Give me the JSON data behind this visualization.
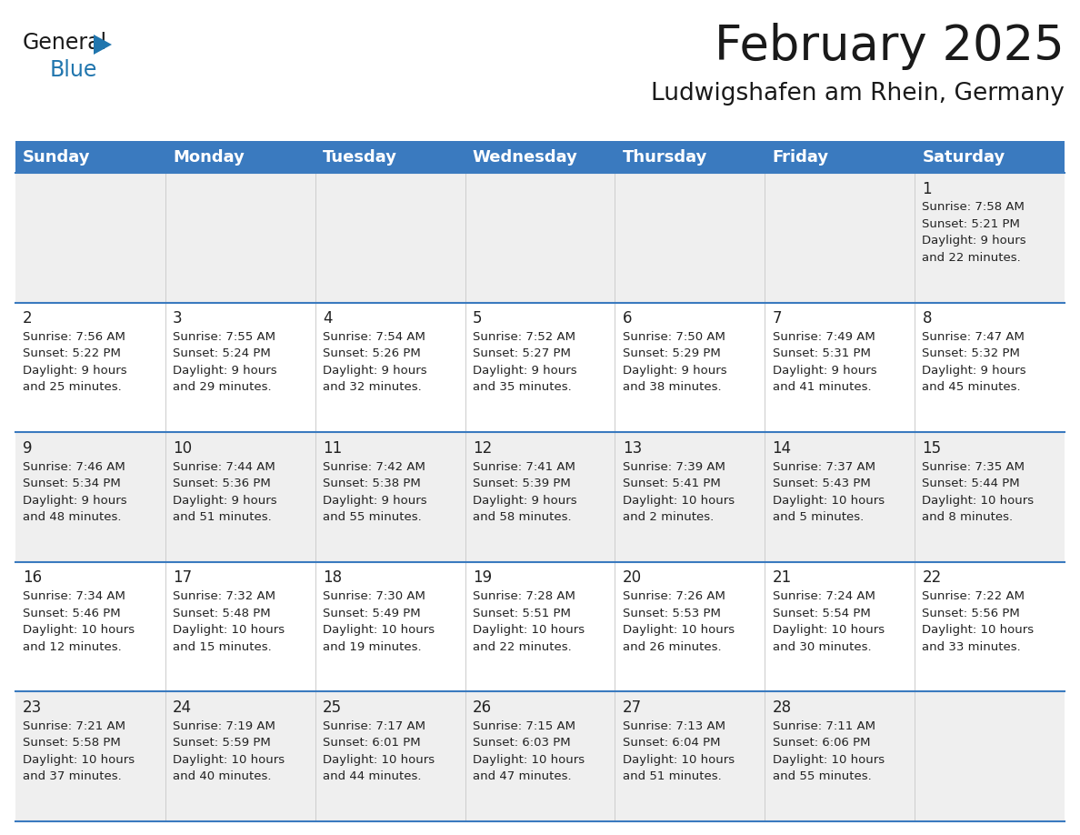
{
  "title": "February 2025",
  "subtitle": "Ludwigshafen am Rhein, Germany",
  "header_color": "#3a7abf",
  "header_text_color": "#ffffff",
  "cell_bg_odd": "#efefef",
  "cell_bg_even": "#ffffff",
  "border_color": "#3a7abf",
  "text_color": "#222222",
  "days_of_week": [
    "Sunday",
    "Monday",
    "Tuesday",
    "Wednesday",
    "Thursday",
    "Friday",
    "Saturday"
  ],
  "calendar_data": [
    [
      {
        "day": "",
        "info": ""
      },
      {
        "day": "",
        "info": ""
      },
      {
        "day": "",
        "info": ""
      },
      {
        "day": "",
        "info": ""
      },
      {
        "day": "",
        "info": ""
      },
      {
        "day": "",
        "info": ""
      },
      {
        "day": "1",
        "info": "Sunrise: 7:58 AM\nSunset: 5:21 PM\nDaylight: 9 hours\nand 22 minutes."
      }
    ],
    [
      {
        "day": "2",
        "info": "Sunrise: 7:56 AM\nSunset: 5:22 PM\nDaylight: 9 hours\nand 25 minutes."
      },
      {
        "day": "3",
        "info": "Sunrise: 7:55 AM\nSunset: 5:24 PM\nDaylight: 9 hours\nand 29 minutes."
      },
      {
        "day": "4",
        "info": "Sunrise: 7:54 AM\nSunset: 5:26 PM\nDaylight: 9 hours\nand 32 minutes."
      },
      {
        "day": "5",
        "info": "Sunrise: 7:52 AM\nSunset: 5:27 PM\nDaylight: 9 hours\nand 35 minutes."
      },
      {
        "day": "6",
        "info": "Sunrise: 7:50 AM\nSunset: 5:29 PM\nDaylight: 9 hours\nand 38 minutes."
      },
      {
        "day": "7",
        "info": "Sunrise: 7:49 AM\nSunset: 5:31 PM\nDaylight: 9 hours\nand 41 minutes."
      },
      {
        "day": "8",
        "info": "Sunrise: 7:47 AM\nSunset: 5:32 PM\nDaylight: 9 hours\nand 45 minutes."
      }
    ],
    [
      {
        "day": "9",
        "info": "Sunrise: 7:46 AM\nSunset: 5:34 PM\nDaylight: 9 hours\nand 48 minutes."
      },
      {
        "day": "10",
        "info": "Sunrise: 7:44 AM\nSunset: 5:36 PM\nDaylight: 9 hours\nand 51 minutes."
      },
      {
        "day": "11",
        "info": "Sunrise: 7:42 AM\nSunset: 5:38 PM\nDaylight: 9 hours\nand 55 minutes."
      },
      {
        "day": "12",
        "info": "Sunrise: 7:41 AM\nSunset: 5:39 PM\nDaylight: 9 hours\nand 58 minutes."
      },
      {
        "day": "13",
        "info": "Sunrise: 7:39 AM\nSunset: 5:41 PM\nDaylight: 10 hours\nand 2 minutes."
      },
      {
        "day": "14",
        "info": "Sunrise: 7:37 AM\nSunset: 5:43 PM\nDaylight: 10 hours\nand 5 minutes."
      },
      {
        "day": "15",
        "info": "Sunrise: 7:35 AM\nSunset: 5:44 PM\nDaylight: 10 hours\nand 8 minutes."
      }
    ],
    [
      {
        "day": "16",
        "info": "Sunrise: 7:34 AM\nSunset: 5:46 PM\nDaylight: 10 hours\nand 12 minutes."
      },
      {
        "day": "17",
        "info": "Sunrise: 7:32 AM\nSunset: 5:48 PM\nDaylight: 10 hours\nand 15 minutes."
      },
      {
        "day": "18",
        "info": "Sunrise: 7:30 AM\nSunset: 5:49 PM\nDaylight: 10 hours\nand 19 minutes."
      },
      {
        "day": "19",
        "info": "Sunrise: 7:28 AM\nSunset: 5:51 PM\nDaylight: 10 hours\nand 22 minutes."
      },
      {
        "day": "20",
        "info": "Sunrise: 7:26 AM\nSunset: 5:53 PM\nDaylight: 10 hours\nand 26 minutes."
      },
      {
        "day": "21",
        "info": "Sunrise: 7:24 AM\nSunset: 5:54 PM\nDaylight: 10 hours\nand 30 minutes."
      },
      {
        "day": "22",
        "info": "Sunrise: 7:22 AM\nSunset: 5:56 PM\nDaylight: 10 hours\nand 33 minutes."
      }
    ],
    [
      {
        "day": "23",
        "info": "Sunrise: 7:21 AM\nSunset: 5:58 PM\nDaylight: 10 hours\nand 37 minutes."
      },
      {
        "day": "24",
        "info": "Sunrise: 7:19 AM\nSunset: 5:59 PM\nDaylight: 10 hours\nand 40 minutes."
      },
      {
        "day": "25",
        "info": "Sunrise: 7:17 AM\nSunset: 6:01 PM\nDaylight: 10 hours\nand 44 minutes."
      },
      {
        "day": "26",
        "info": "Sunrise: 7:15 AM\nSunset: 6:03 PM\nDaylight: 10 hours\nand 47 minutes."
      },
      {
        "day": "27",
        "info": "Sunrise: 7:13 AM\nSunset: 6:04 PM\nDaylight: 10 hours\nand 51 minutes."
      },
      {
        "day": "28",
        "info": "Sunrise: 7:11 AM\nSunset: 6:06 PM\nDaylight: 10 hours\nand 55 minutes."
      },
      {
        "day": "",
        "info": ""
      }
    ]
  ],
  "logo_triangle_color": "#2176ae",
  "title_fontsize": 38,
  "subtitle_fontsize": 19,
  "header_fontsize": 13,
  "day_num_fontsize": 12,
  "info_fontsize": 9.5
}
